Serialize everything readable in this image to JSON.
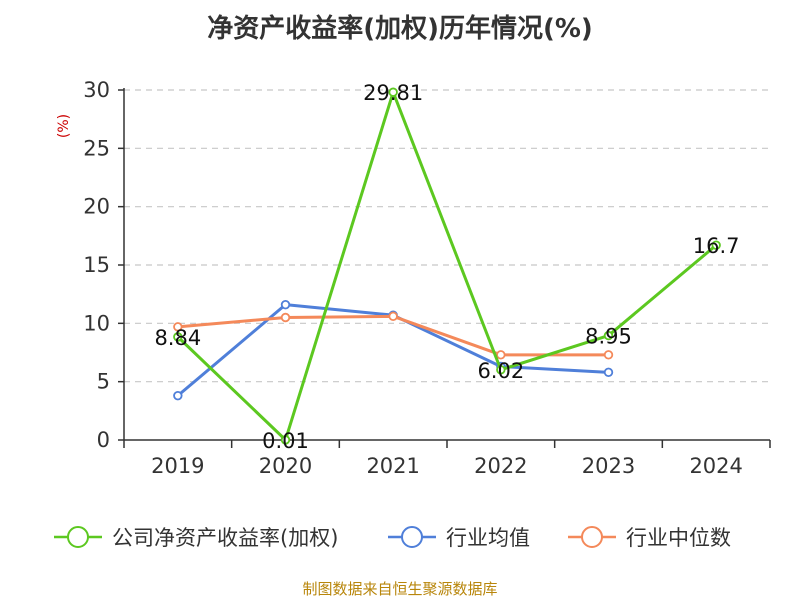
{
  "chart_data": {
    "type": "line",
    "title": "净资产收益率(加权)历年情况(%)",
    "ylabel": "(%)",
    "xlabel": "",
    "categories": [
      "2019",
      "2020",
      "2021",
      "2022",
      "2023",
      "2024"
    ],
    "ylim": [
      0,
      30
    ],
    "yticks": [
      "0",
      "5",
      "10",
      "15",
      "20",
      "25",
      "30"
    ],
    "grid": true,
    "legend_position": "bottom",
    "series": [
      {
        "name": "公司净资产收益率(加权)",
        "color": "#5cc820",
        "values": [
          8.84,
          0.01,
          29.81,
          6.02,
          8.95,
          16.7
        ],
        "labels": [
          "8.84",
          "0.01",
          "29.81",
          "6.02",
          "8.95",
          "16.7"
        ]
      },
      {
        "name": "行业均值",
        "color": "#4f7fd9",
        "values": [
          3.8,
          11.6,
          10.7,
          6.3,
          5.8,
          null
        ]
      },
      {
        "name": "行业中位数",
        "color": "#f4895a",
        "values": [
          9.7,
          10.5,
          10.6,
          7.3,
          7.3,
          null
        ]
      }
    ]
  },
  "source": "制图数据来自恒生聚源数据库"
}
